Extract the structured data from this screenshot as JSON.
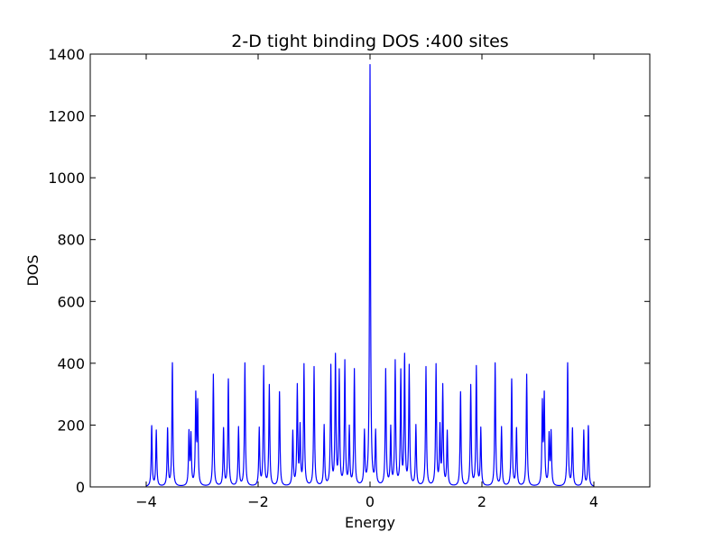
{
  "chart_data": {
    "type": "line",
    "title": "2-D tight binding DOS :400 sites",
    "xlabel": "Energy",
    "ylabel": "DOS",
    "xlim": [
      -5,
      5
    ],
    "ylim": [
      0,
      1400
    ],
    "xticks": [
      -4,
      -2,
      0,
      2,
      4
    ],
    "xtick_labels": [
      "−4",
      "−2",
      "0",
      "2",
      "4"
    ],
    "yticks": [
      0,
      200,
      400,
      600,
      800,
      1000,
      1200,
      1400
    ],
    "ytick_labels": [
      "0",
      "200",
      "400",
      "600",
      "800",
      "1000",
      "1200",
      "1400"
    ],
    "grid": false,
    "line_color": "#0000ff",
    "x_range": [
      -4,
      4
    ],
    "x_step": 0.005,
    "lorentzian_width": 0.01,
    "peaks": [
      {
        "e": -3.902,
        "dos": 195
      },
      {
        "e": -3.82,
        "dos": 180
      },
      {
        "e": -3.618,
        "dos": 185
      },
      {
        "e": -3.532,
        "dos": 398
      },
      {
        "e": -3.236,
        "dos": 170
      },
      {
        "e": -3.2,
        "dos": 160
      },
      {
        "e": -3.114,
        "dos": 285
      },
      {
        "e": -3.08,
        "dos": 260
      },
      {
        "e": -2.8,
        "dos": 362
      },
      {
        "e": -2.618,
        "dos": 185
      },
      {
        "e": -2.532,
        "dos": 345
      },
      {
        "e": -2.35,
        "dos": 190
      },
      {
        "e": -2.236,
        "dos": 398
      },
      {
        "e": -1.98,
        "dos": 185
      },
      {
        "e": -1.9,
        "dos": 385
      },
      {
        "e": -1.8,
        "dos": 325
      },
      {
        "e": -1.618,
        "dos": 305
      },
      {
        "e": -1.38,
        "dos": 175
      },
      {
        "e": -1.3,
        "dos": 320
      },
      {
        "e": -1.25,
        "dos": 185
      },
      {
        "e": -1.18,
        "dos": 390
      },
      {
        "e": -1.0,
        "dos": 385
      },
      {
        "e": -0.82,
        "dos": 195
      },
      {
        "e": -0.7,
        "dos": 385
      },
      {
        "e": -0.618,
        "dos": 415
      },
      {
        "e": -0.55,
        "dos": 365
      },
      {
        "e": -0.45,
        "dos": 400
      },
      {
        "e": -0.37,
        "dos": 185
      },
      {
        "e": -0.28,
        "dos": 375
      },
      {
        "e": -0.1,
        "dos": 170
      },
      {
        "e": 0.0,
        "dos": 1360
      },
      {
        "e": 0.1,
        "dos": 170
      },
      {
        "e": 0.28,
        "dos": 375
      },
      {
        "e": 0.37,
        "dos": 185
      },
      {
        "e": 0.45,
        "dos": 400
      },
      {
        "e": 0.55,
        "dos": 365
      },
      {
        "e": 0.618,
        "dos": 415
      },
      {
        "e": 0.7,
        "dos": 385
      },
      {
        "e": 0.82,
        "dos": 195
      },
      {
        "e": 1.0,
        "dos": 385
      },
      {
        "e": 1.18,
        "dos": 390
      },
      {
        "e": 1.25,
        "dos": 185
      },
      {
        "e": 1.3,
        "dos": 320
      },
      {
        "e": 1.38,
        "dos": 175
      },
      {
        "e": 1.618,
        "dos": 305
      },
      {
        "e": 1.8,
        "dos": 325
      },
      {
        "e": 1.9,
        "dos": 385
      },
      {
        "e": 1.98,
        "dos": 185
      },
      {
        "e": 2.236,
        "dos": 398
      },
      {
        "e": 2.35,
        "dos": 190
      },
      {
        "e": 2.532,
        "dos": 345
      },
      {
        "e": 2.618,
        "dos": 185
      },
      {
        "e": 2.8,
        "dos": 362
      },
      {
        "e": 3.08,
        "dos": 260
      },
      {
        "e": 3.114,
        "dos": 285
      },
      {
        "e": 3.2,
        "dos": 160
      },
      {
        "e": 3.236,
        "dos": 170
      },
      {
        "e": 3.532,
        "dos": 398
      },
      {
        "e": 3.618,
        "dos": 185
      },
      {
        "e": 3.82,
        "dos": 180
      },
      {
        "e": 3.902,
        "dos": 195
      }
    ]
  }
}
